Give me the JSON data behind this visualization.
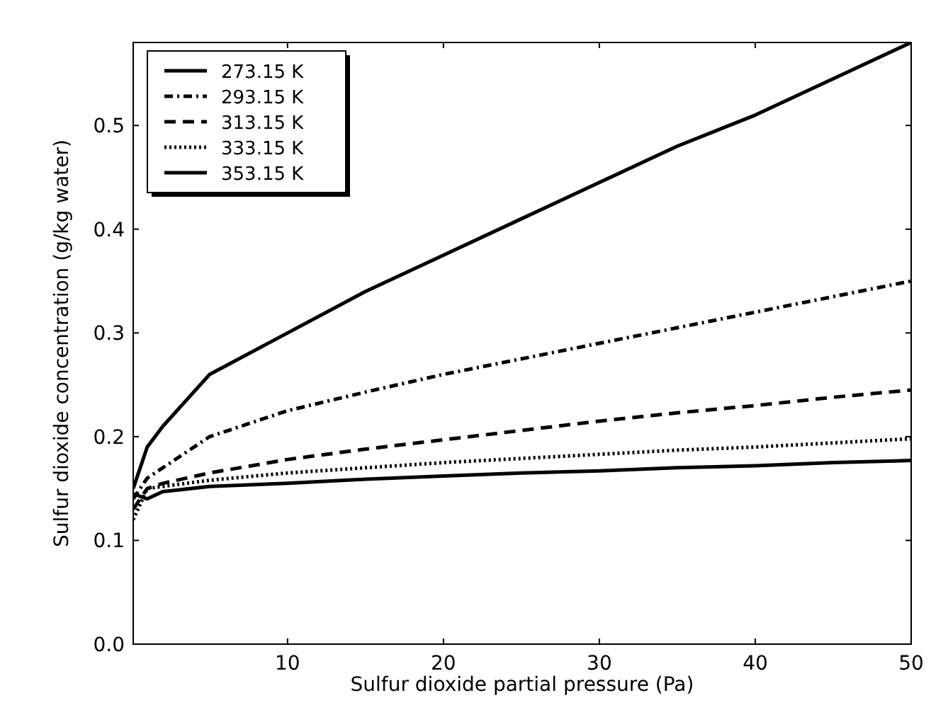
{
  "chart_data": {
    "type": "line",
    "xlabel": "Sulfur dioxide partial pressure (Pa)",
    "ylabel": "Sulfur dioxide concentration (g/kg water)",
    "xlim": [
      0.1,
      50
    ],
    "xticks": [
      10,
      20,
      30,
      40,
      50
    ],
    "ylim": [
      0,
      0.58
    ],
    "yticks": [
      {
        "value": 0,
        "label": "0.0"
      },
      0.1,
      0.2,
      0.3,
      0.4,
      0.5
    ],
    "x": [
      0.1,
      1,
      2,
      5,
      10,
      15,
      20,
      25,
      30,
      35,
      40,
      45,
      50
    ],
    "series": [
      {
        "name": "273.15 K",
        "color": "#000000",
        "line_style": "solid",
        "values": [
          0.15,
          0.19,
          0.21,
          0.26,
          0.3,
          0.34,
          0.375,
          0.41,
          0.445,
          0.48,
          0.51,
          0.545,
          0.58
        ]
      },
      {
        "name": "293.15 K",
        "color": "#000000",
        "line_style": "dashdot",
        "values": [
          0.14,
          0.16,
          0.17,
          0.2,
          0.225,
          0.243,
          0.26,
          0.275,
          0.29,
          0.305,
          0.32,
          0.335,
          0.35
        ]
      },
      {
        "name": "313.15 K",
        "color": "#000000",
        "line_style": "dashed",
        "values": [
          0.13,
          0.15,
          0.155,
          0.165,
          0.178,
          0.188,
          0.197,
          0.206,
          0.215,
          0.223,
          0.23,
          0.238,
          0.245
        ]
      },
      {
        "name": "333.15 K",
        "color": "#000000",
        "line_style": "dotted",
        "values": [
          0.12,
          0.15,
          0.152,
          0.158,
          0.165,
          0.17,
          0.175,
          0.179,
          0.183,
          0.187,
          0.19,
          0.194,
          0.198
        ]
      },
      {
        "name": "353.15 K",
        "color": "#000000",
        "line_style": "solid",
        "values": [
          0.145,
          0.14,
          0.147,
          0.152,
          0.155,
          0.159,
          0.162,
          0.165,
          0.167,
          0.17,
          0.172,
          0.175,
          0.177
        ]
      }
    ],
    "legend": "top left",
    "grid": false
  }
}
